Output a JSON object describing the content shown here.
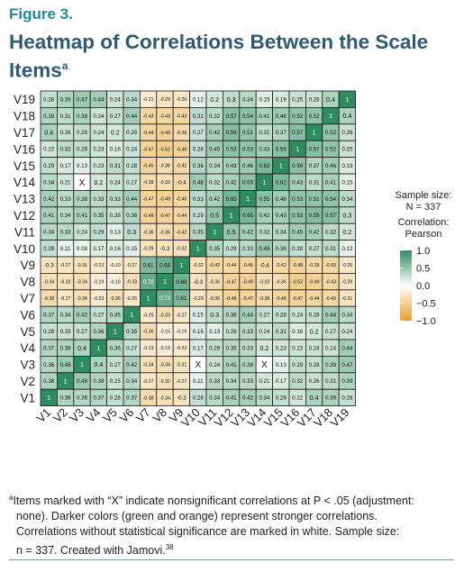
{
  "figure_label": "Figure 3.",
  "title_main": "Heatmap of Correlations Between the Scale Items",
  "title_marker": "a",
  "footnote": {
    "marker": "a",
    "line1": "Items marked with “X” indicate nonsignificant correlations at P < .05 (adjustment:",
    "line2": "none). Darker colors (green and orange) represent stronger correlations.",
    "line3": "Correlations without statistical significance are marked in white. Sample size:",
    "line4": "n = 337. Created with Jamovi.",
    "ref": "38"
  },
  "colors": {
    "positive": "#2e8b62",
    "zero": "#ffffff",
    "negative": "#e8a12c",
    "figure_label": "#1f8a97",
    "title": "#2f5a73"
  },
  "chart_data": {
    "type": "heatmap",
    "title": "Heatmap of Correlations Between the Scale Items",
    "x_categories": [
      "V1",
      "V2",
      "V3",
      "V4",
      "V5",
      "V6",
      "V7",
      "V8",
      "V9",
      "V10",
      "V11",
      "V12",
      "V13",
      "V14",
      "V15",
      "V16",
      "V17",
      "V18",
      "V19"
    ],
    "y_categories": [
      "V19",
      "V18",
      "V17",
      "V16",
      "V15",
      "V14",
      "V13",
      "V12",
      "V11",
      "V10",
      "V9",
      "V8",
      "V7",
      "V6",
      "V5",
      "V4",
      "V3",
      "V2",
      "V1"
    ],
    "value_range": [
      -1,
      1
    ],
    "rows": [
      [
        "0.28",
        "0.39",
        "0.47",
        "0.44",
        "0.24",
        "0.34",
        "-0.21",
        "-0.29",
        "-0.26",
        "0.12",
        "0.2",
        "0.3",
        "0.34",
        "0.15",
        "0.19",
        "0.25",
        "0.26",
        "0.4",
        "1"
      ],
      [
        "0.39",
        "0.31",
        "0.39",
        "0.24",
        "0.27",
        "0.44",
        "-0.43",
        "-0.43",
        "-0.43",
        "0.31",
        "0.32",
        "0.57",
        "0.54",
        "0.41",
        "0.46",
        "0.52",
        "0.52",
        "1",
        "0.4"
      ],
      [
        "0.4",
        "0.26",
        "0.28",
        "0.24",
        "0.2",
        "0.28",
        "-0.44",
        "-0.49",
        "-0.38",
        "0.27",
        "0.42",
        "0.59",
        "0.51",
        "0.31",
        "0.37",
        "0.57",
        "1",
        "0.52",
        "0.26"
      ],
      [
        "0.22",
        "0.32",
        "0.29",
        "0.23",
        "0.16",
        "0.24",
        "-0.47",
        "-0.52",
        "-0.48",
        "0.28",
        "0.45",
        "0.53",
        "0.53",
        "0.43",
        "0.56",
        "1",
        "0.57",
        "0.52",
        "0.25"
      ],
      [
        "0.29",
        "0.17",
        "0.13",
        "0.23",
        "0.31",
        "0.28",
        "-0.46",
        "-0.36",
        "-0.42",
        "0.36",
        "0.34",
        "0.43",
        "0.46",
        "0.62",
        "1",
        "0.56",
        "0.37",
        "0.46",
        "0.19"
      ],
      [
        "0.34",
        "0.21",
        "X",
        "0.2",
        "0.24",
        "0.27",
        "-0.38",
        "-0.33",
        "-0.4",
        "0.48",
        "0.32",
        "0.42",
        "0.55",
        "1",
        "0.62",
        "0.43",
        "0.31",
        "0.41",
        "0.15"
      ],
      [
        "0.42",
        "0.33",
        "0.38",
        "0.33",
        "0.33",
        "0.44",
        "-0.47",
        "-0.49",
        "-0.45",
        "0.33",
        "0.42",
        "0.65",
        "1",
        "0.55",
        "0.46",
        "0.53",
        "0.51",
        "0.54",
        "0.34"
      ],
      [
        "0.41",
        "0.34",
        "0.41",
        "0.35",
        "0.28",
        "0.36",
        "-0.48",
        "-0.47",
        "-0.44",
        "0.29",
        "0.5",
        "1",
        "0.65",
        "0.42",
        "0.43",
        "0.53",
        "0.59",
        "0.57",
        "0.3"
      ],
      [
        "0.34",
        "0.33",
        "0.24",
        "0.29",
        "0.13",
        "0.3",
        "-0.36",
        "-0.36",
        "-0.42",
        "0.35",
        "1",
        "0.5",
        "0.42",
        "0.32",
        "0.34",
        "0.45",
        "0.42",
        "0.32",
        "0.2"
      ],
      [
        "0.28",
        "0.11",
        "0.08",
        "0.17",
        "0.16",
        "0.15",
        "-0.29",
        "-0.3",
        "-0.32",
        "1",
        "0.35",
        "0.29",
        "0.33",
        "0.48",
        "0.36",
        "0.28",
        "0.27",
        "0.31",
        "0.12"
      ],
      [
        "-0.3",
        "-0.27",
        "-0.31",
        "-0.23",
        "-0.19",
        "-0.27",
        "0.61",
        "0.68",
        "1",
        "-0.32",
        "-0.42",
        "-0.44",
        "-0.45",
        "-0.4",
        "-0.42",
        "-0.48",
        "-0.38",
        "-0.43",
        "-0.26"
      ],
      [
        "-0.34",
        "-0.32",
        "-0.34",
        "-0.19",
        "-0.16",
        "-0.33",
        "0.72",
        "1",
        "0.68",
        "-0.3",
        "-0.36",
        "-0.47",
        "-0.49",
        "-0.33",
        "-0.36",
        "-0.52",
        "-0.49",
        "-0.43",
        "-0.29"
      ],
      [
        "-0.38",
        "-0.27",
        "-0.34",
        "-0.23",
        "-0.36",
        "-0.25",
        "1",
        "0.72",
        "0.61",
        "-0.29",
        "-0.36",
        "-0.48",
        "-0.47",
        "-0.38",
        "-0.46",
        "-0.47",
        "-0.44",
        "-0.43",
        "-0.31"
      ],
      [
        "0.37",
        "0.34",
        "0.42",
        "0.27",
        "0.35",
        "1",
        "-0.25",
        "-0.33",
        "-0.27",
        "0.15",
        "0.3",
        "0.36",
        "0.44",
        "0.27",
        "0.28",
        "0.24",
        "0.28",
        "0.44",
        "0.34"
      ],
      [
        "0.28",
        "0.25",
        "0.27",
        "0.36",
        "1",
        "0.35",
        "-0.36",
        "-0.16",
        "-0.19",
        "0.16",
        "0.13",
        "0.28",
        "0.33",
        "0.24",
        "0.31",
        "0.16",
        "0.2",
        "0.27",
        "0.24"
      ],
      [
        "0.37",
        "0.38",
        "0.4",
        "1",
        "0.36",
        "0.27",
        "-0.23",
        "-0.19",
        "-0.23",
        "0.17",
        "0.29",
        "0.35",
        "0.33",
        "0.2",
        "0.23",
        "0.23",
        "0.24",
        "0.24",
        "0.44"
      ],
      [
        "0.36",
        "0.48",
        "1",
        "0.4",
        "0.27",
        "0.42",
        "-0.34",
        "-0.34",
        "-0.31",
        "X",
        "0.24",
        "0.41",
        "0.38",
        "X",
        "0.13",
        "0.29",
        "0.28",
        "0.39",
        "0.47"
      ],
      [
        "0.38",
        "1",
        "0.48",
        "0.38",
        "0.25",
        "0.34",
        "-0.27",
        "-0.32",
        "-0.27",
        "0.11",
        "0.33",
        "0.34",
        "0.33",
        "0.21",
        "0.17",
        "0.32",
        "0.26",
        "0.31",
        "0.39"
      ],
      [
        "1",
        "0.38",
        "0.36",
        "0.37",
        "0.28",
        "0.37",
        "-0.38",
        "-0.34",
        "-0.3",
        "0.28",
        "0.34",
        "0.41",
        "0.42",
        "0.34",
        "0.29",
        "0.22",
        "0.4",
        "0.39",
        "0.28"
      ]
    ],
    "legend": {
      "sample_size_label": "Sample size:",
      "sample_size_value": "N = 337",
      "correlation_label": "Correlation:",
      "correlation_method": "Pearson",
      "ticks": [
        "1.0",
        "0.5",
        "0.0",
        "−0.5",
        "−1.0"
      ],
      "tick_values": [
        1.0,
        0.5,
        0.0,
        -0.5,
        -1.0
      ]
    }
  }
}
